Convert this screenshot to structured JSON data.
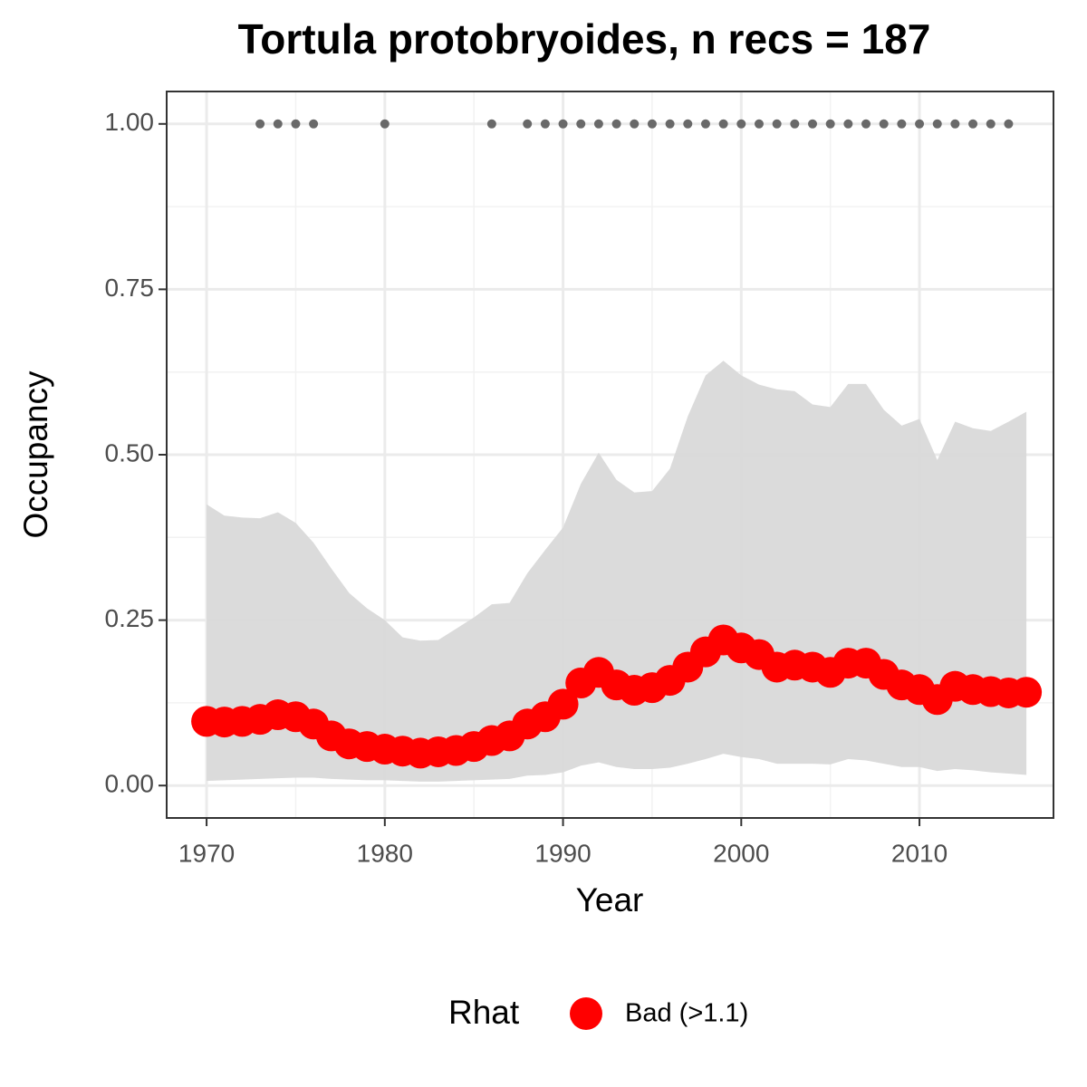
{
  "chart_data": {
    "type": "line",
    "title": "Tortula protobryoides, n recs = 187",
    "x_label": "Year",
    "y_label": "Occupancy",
    "legend_title": "Rhat",
    "x": [
      1970,
      1971,
      1972,
      1973,
      1974,
      1975,
      1976,
      1977,
      1978,
      1979,
      1980,
      1981,
      1982,
      1983,
      1984,
      1985,
      1986,
      1987,
      1988,
      1989,
      1990,
      1991,
      1992,
      1993,
      1994,
      1995,
      1996,
      1997,
      1998,
      1999,
      2000,
      2001,
      2002,
      2003,
      2004,
      2005,
      2006,
      2007,
      2008,
      2009,
      2010,
      2011,
      2012,
      2013,
      2014,
      2015,
      2016
    ],
    "series": [
      {
        "name": "Bad (>1.1)",
        "color": "#ff0000",
        "values": [
          0.097,
          0.096,
          0.097,
          0.1,
          0.107,
          0.104,
          0.093,
          0.075,
          0.063,
          0.059,
          0.055,
          0.052,
          0.049,
          0.051,
          0.053,
          0.059,
          0.068,
          0.075,
          0.093,
          0.104,
          0.123,
          0.155,
          0.171,
          0.152,
          0.144,
          0.148,
          0.159,
          0.179,
          0.202,
          0.22,
          0.208,
          0.198,
          0.179,
          0.182,
          0.179,
          0.171,
          0.185,
          0.185,
          0.168,
          0.152,
          0.145,
          0.13,
          0.15,
          0.145,
          0.142,
          0.14,
          0.141
        ]
      }
    ],
    "band": {
      "color": "#d9d9d9",
      "upper": [
        0.425,
        0.408,
        0.405,
        0.404,
        0.413,
        0.397,
        0.367,
        0.328,
        0.291,
        0.268,
        0.25,
        0.224,
        0.219,
        0.22,
        0.237,
        0.254,
        0.274,
        0.276,
        0.321,
        0.356,
        0.39,
        0.456,
        0.503,
        0.462,
        0.443,
        0.445,
        0.479,
        0.558,
        0.62,
        0.642,
        0.62,
        0.606,
        0.599,
        0.596,
        0.576,
        0.572,
        0.607,
        0.607,
        0.568,
        0.544,
        0.554,
        0.492,
        0.55,
        0.54,
        0.536,
        0.55,
        0.565
      ],
      "lower": [
        0.007,
        0.008,
        0.009,
        0.01,
        0.011,
        0.012,
        0.012,
        0.01,
        0.009,
        0.008,
        0.008,
        0.007,
        0.006,
        0.006,
        0.007,
        0.008,
        0.009,
        0.01,
        0.015,
        0.016,
        0.02,
        0.03,
        0.035,
        0.028,
        0.025,
        0.025,
        0.027,
        0.033,
        0.04,
        0.048,
        0.043,
        0.04,
        0.033,
        0.033,
        0.033,
        0.032,
        0.04,
        0.038,
        0.033,
        0.028,
        0.028,
        0.022,
        0.025,
        0.023,
        0.02,
        0.018,
        0.016
      ]
    },
    "detections": {
      "color": "#696969",
      "x": [
        1973,
        1974,
        1975,
        1976,
        1980,
        1986,
        1988,
        1989,
        1990,
        1991,
        1992,
        1993,
        1994,
        1995,
        1996,
        1997,
        1998,
        1999,
        2000,
        2001,
        2002,
        2003,
        2004,
        2005,
        2006,
        2007,
        2008,
        2009,
        2010,
        2011,
        2012,
        2013,
        2014,
        2015
      ],
      "values": [
        1,
        1,
        1,
        1,
        1,
        1,
        1,
        1,
        1,
        1,
        1,
        1,
        1,
        1,
        1,
        1,
        1,
        1,
        1,
        1,
        1,
        1,
        1,
        1,
        1,
        1,
        1,
        1,
        1,
        1,
        1,
        1,
        1,
        1
      ]
    },
    "xlim": [
      1967.76,
      2017.52
    ],
    "ylim": [
      -0.049,
      1.049
    ],
    "xticks": [
      1970,
      1980,
      1990,
      2000,
      2010
    ],
    "yticks": [
      {
        "value": 0,
        "label": "0.00"
      },
      {
        "value": 0.25,
        "label": "0.25"
      },
      {
        "value": 0.5,
        "label": "0.50"
      },
      {
        "value": 0.75,
        "label": "0.75"
      },
      {
        "value": 1,
        "label": "1.00"
      }
    ],
    "grid": true
  }
}
